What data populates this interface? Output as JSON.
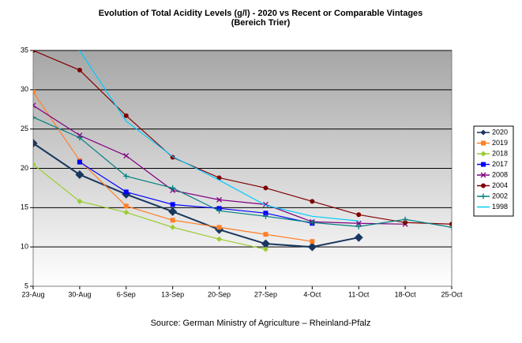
{
  "chart_data": {
    "type": "line",
    "title": "Evolution of Total Acidity Levels (g/l) - 2020 vs Recent or Comparable Vintages",
    "subtitle": "(Bereich Trier)",
    "source": "Source: German Ministry of Agriculture – Rheinland-Pfalz",
    "categories": [
      "23-Aug",
      "30-Aug",
      "6-Sep",
      "13-Sep",
      "20-Sep",
      "27-Sep",
      "4-Oct",
      "11-Oct",
      "18-Oct",
      "25-Oct"
    ],
    "ylim": [
      5,
      35
    ],
    "yticks": [
      5,
      10,
      15,
      20,
      25,
      30,
      35
    ],
    "grid": true,
    "series": [
      {
        "name": "2020",
        "color": "#17375e",
        "marker": "diamond-lg",
        "values": [
          23.2,
          19.2,
          16.7,
          14.5,
          12.2,
          10.4,
          10.0,
          11.2,
          null,
          null
        ]
      },
      {
        "name": "2019",
        "color": "#ff7f27",
        "marker": "square",
        "values": [
          29.7,
          21.0,
          15.2,
          13.4,
          12.5,
          11.6,
          10.7,
          null,
          null,
          null
        ]
      },
      {
        "name": "2018",
        "color": "#9acd32",
        "marker": "diamond",
        "values": [
          20.5,
          15.8,
          14.4,
          12.5,
          11.0,
          9.7,
          null,
          null,
          null,
          null
        ]
      },
      {
        "name": "2017",
        "color": "#0000ff",
        "marker": "square",
        "values": [
          null,
          20.8,
          17.0,
          15.4,
          14.9,
          14.3,
          13.0,
          null,
          null,
          null
        ]
      },
      {
        "name": "2008",
        "color": "#800080",
        "marker": "x",
        "values": [
          28.0,
          24.2,
          21.6,
          17.2,
          16.0,
          15.4,
          13.2,
          13.0,
          12.9,
          null
        ]
      },
      {
        "name": "2004",
        "color": "#800000",
        "marker": "circle",
        "values": [
          35.0,
          32.5,
          26.7,
          21.4,
          18.8,
          17.5,
          15.8,
          14.1,
          13.1,
          12.9
        ]
      },
      {
        "name": "2002",
        "color": "#008080",
        "marker": "plus",
        "values": [
          26.5,
          23.9,
          19.0,
          17.5,
          14.6,
          13.9,
          13.1,
          12.6,
          13.5,
          12.5
        ]
      },
      {
        "name": "1998",
        "color": "#00ccff",
        "marker": "none",
        "values": [
          null,
          35.0,
          26.0,
          21.5,
          18.5,
          15.3,
          13.9,
          13.3,
          null,
          null
        ]
      }
    ]
  }
}
